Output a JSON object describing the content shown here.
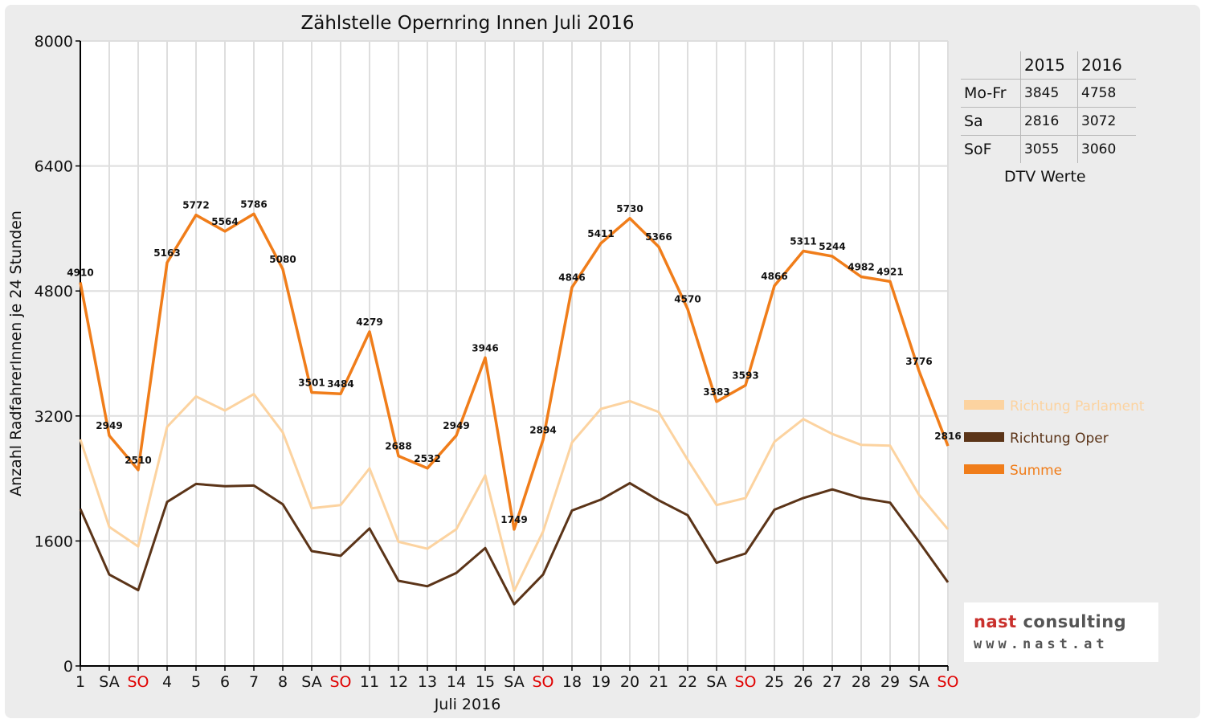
{
  "chart_data": {
    "type": "line",
    "title": "Zählstelle Opernring Innen Juli 2016",
    "xlabel": "Juli 2016",
    "ylabel": "Anzahl RadfahrerInnen je 24 Stunden",
    "ylim": [
      0,
      8000
    ],
    "yticks": [
      "0",
      "1600",
      "3200",
      "4800",
      "6400",
      "8000"
    ],
    "grid": true,
    "legend_position": "right",
    "categories": [
      "1",
      "SA",
      "SO",
      "4",
      "5",
      "6",
      "7",
      "8",
      "SA",
      "SO",
      "11",
      "12",
      "13",
      "14",
      "15",
      "SA",
      "SO",
      "18",
      "19",
      "20",
      "21",
      "22",
      "SA",
      "SO",
      "25",
      "26",
      "27",
      "28",
      "29",
      "SA",
      "SO"
    ],
    "weekend_sunday_color": "#e00000",
    "series": [
      {
        "name": "Richtung Parlament",
        "color": "#fcd3a0",
        "values": [
          2900,
          1780,
          1530,
          3060,
          3450,
          3270,
          3480,
          2990,
          2020,
          2060,
          2530,
          1590,
          1500,
          1750,
          2440,
          960,
          1720,
          2860,
          3290,
          3390,
          3250,
          2640,
          2060,
          2150,
          2870,
          3160,
          2970,
          2830,
          2820,
          2190,
          1750
        ]
      },
      {
        "name": "Richtung Oper",
        "color": "#5b3418",
        "values": [
          2010,
          1170,
          970,
          2100,
          2330,
          2300,
          2310,
          2070,
          1470,
          1410,
          1760,
          1090,
          1020,
          1190,
          1510,
          790,
          1170,
          1990,
          2130,
          2340,
          2120,
          1930,
          1320,
          1440,
          2000,
          2150,
          2260,
          2150,
          2090,
          1590,
          1070
        ]
      },
      {
        "name": "Summe",
        "color": "#f07d1a",
        "values": [
          4910,
          2949,
          2510,
          5163,
          5772,
          5564,
          5786,
          5080,
          3501,
          3484,
          4279,
          2688,
          2532,
          2949,
          3946,
          1749,
          2894,
          4846,
          5411,
          5730,
          5366,
          4570,
          3383,
          3593,
          4866,
          5311,
          5244,
          4982,
          4921,
          3776,
          2816
        ],
        "data_labels": [
          "4910",
          "2949",
          "2510",
          "5163",
          "5772",
          "5564",
          "5786",
          "5080",
          "3501",
          "3484",
          "4279",
          "2688",
          "2532",
          "2949",
          "3946",
          "1749",
          "2894",
          "4846",
          "5411",
          "5730",
          "5366",
          "4570",
          "3383",
          "3593",
          "4866",
          "5311",
          "5244",
          "4982",
          "4921",
          "3776",
          "2816"
        ]
      }
    ]
  },
  "dtv_table": {
    "header": [
      "",
      "2015",
      "2016"
    ],
    "rows": [
      {
        "label": "Mo-Fr",
        "v2015": "3845",
        "v2016": "4758"
      },
      {
        "label": "Sa",
        "v2015": "2816",
        "v2016": "3072"
      },
      {
        "label": "SoF",
        "v2015": "3055",
        "v2016": "3060"
      }
    ],
    "caption": "DTV Werte"
  },
  "logo": {
    "main_part1": "nast ",
    "main_part2": "consulting",
    "sub": "www.nast.at"
  }
}
